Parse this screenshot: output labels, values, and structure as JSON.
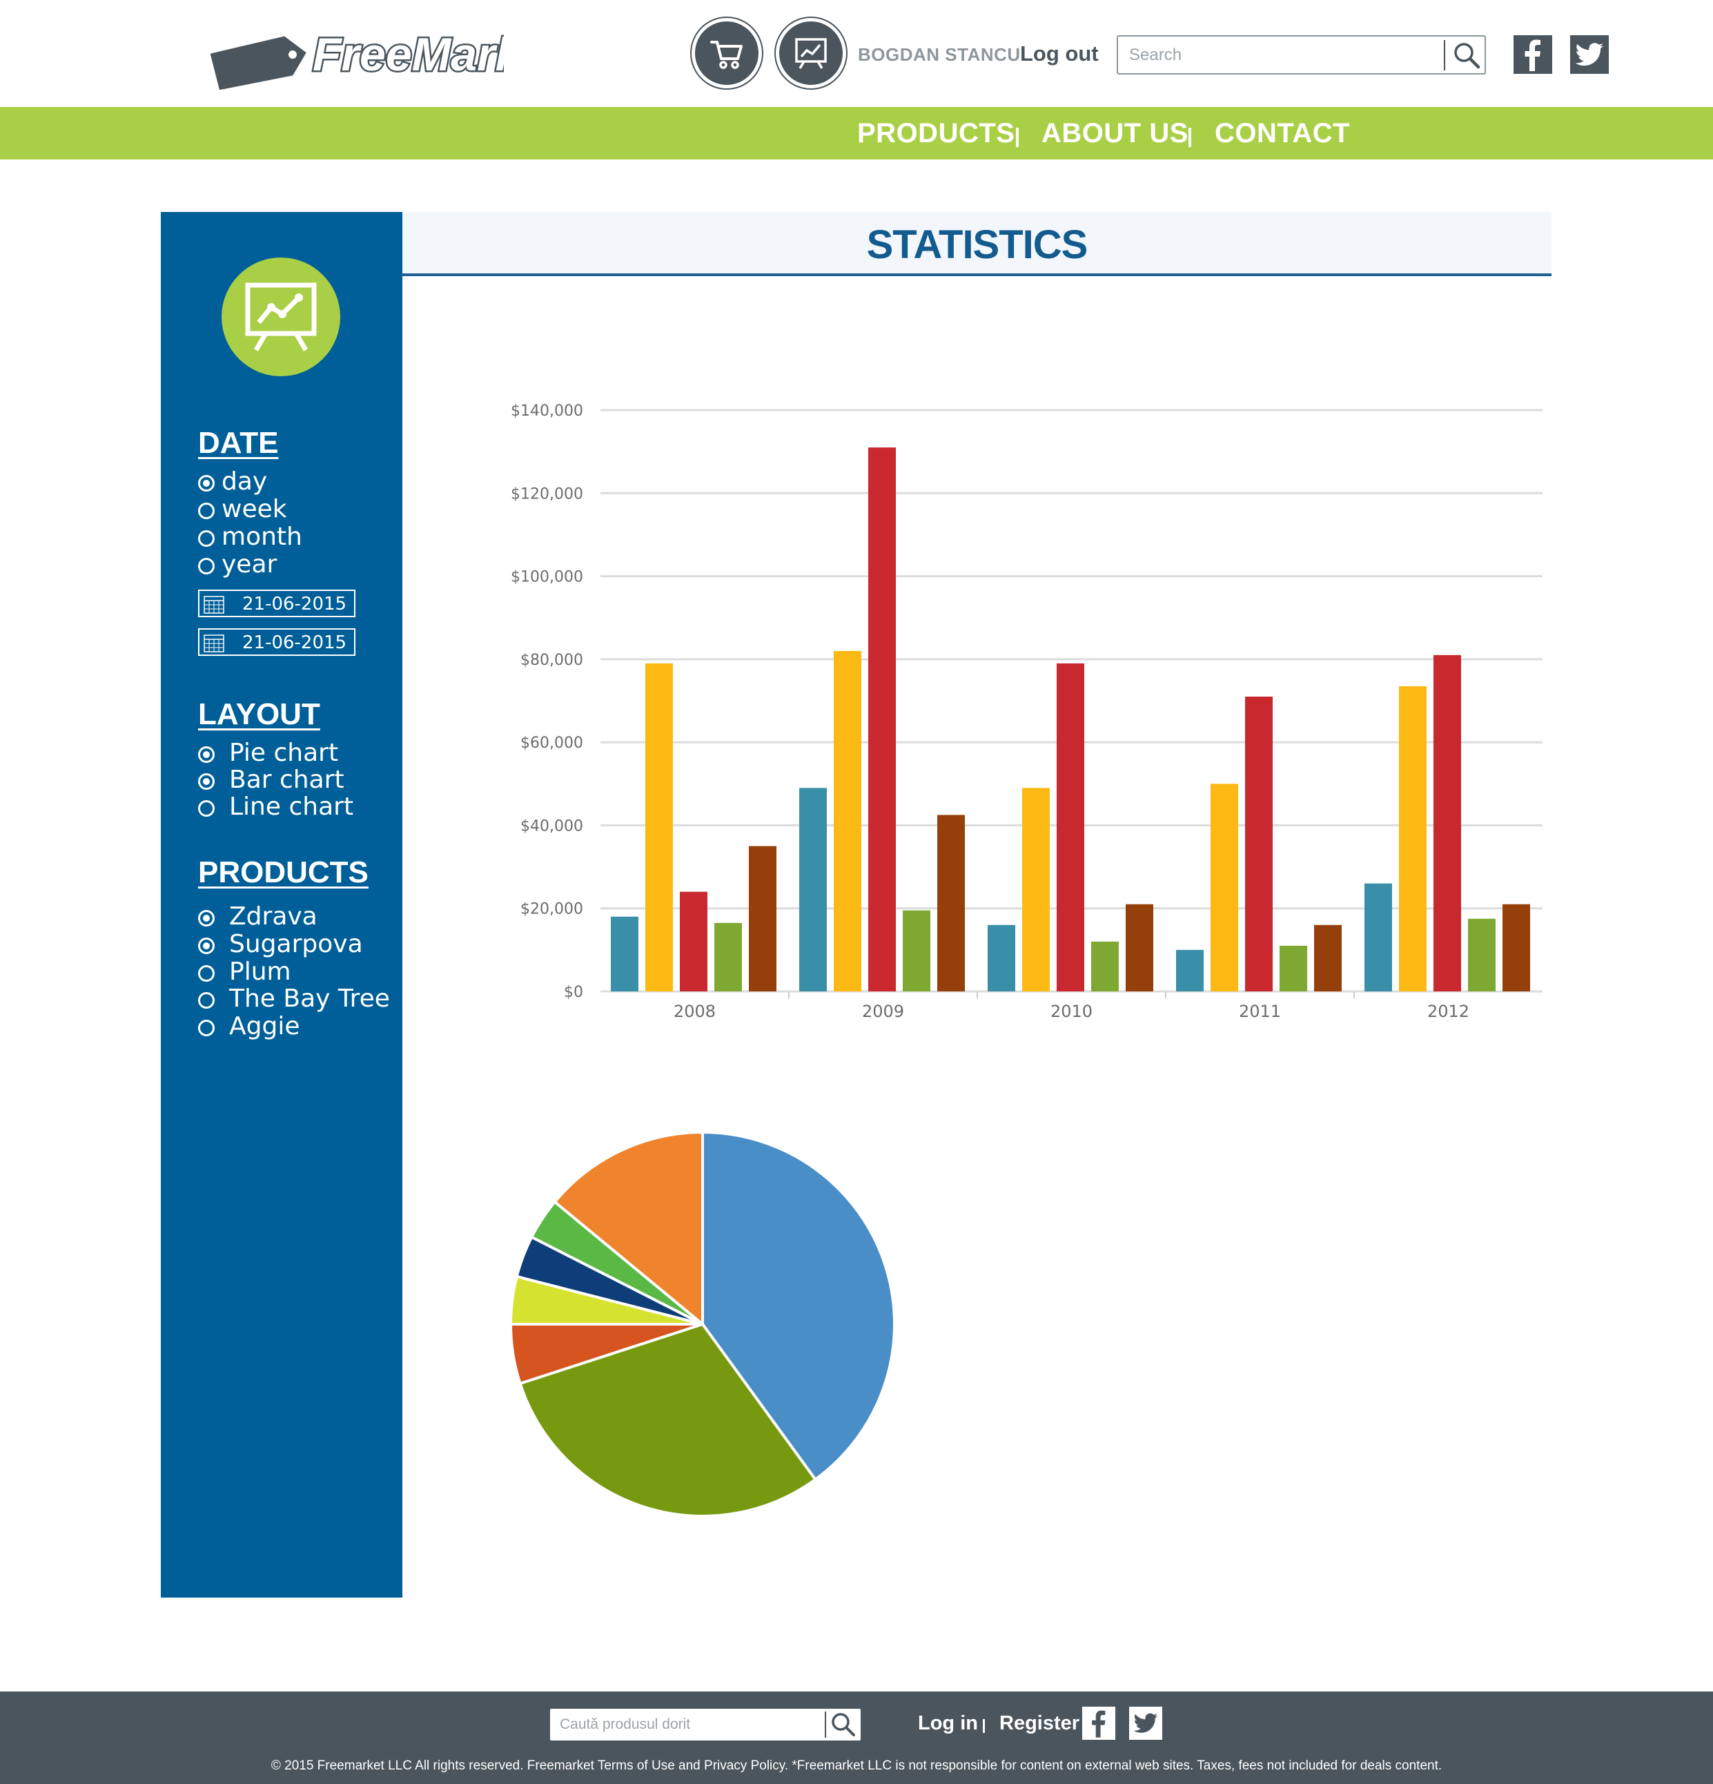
{
  "header": {
    "logo_text": "FreeMarket",
    "user_name": "BOGDAN STANCU",
    "logout_label": "Log out",
    "search_placeholder": "Search",
    "icons": [
      "shopping-cart-icon",
      "statistics-chart-icon",
      "search-icon",
      "facebook-icon",
      "twitter-icon"
    ]
  },
  "nav": {
    "items": [
      "PRODUCTS",
      "ABOUT US",
      "CONTACT"
    ]
  },
  "sidebar": {
    "date": {
      "heading": "DATE",
      "options": [
        {
          "label": "day",
          "checked": true
        },
        {
          "label": "week",
          "checked": false
        },
        {
          "label": "month",
          "checked": false
        },
        {
          "label": "year",
          "checked": false
        }
      ],
      "from": "21-06-2015",
      "to": "21-06-2015"
    },
    "layout": {
      "heading": "LAYOUT",
      "options": [
        {
          "label": "Pie chart",
          "checked": true
        },
        {
          "label": "Bar chart",
          "checked": true
        },
        {
          "label": "Line chart",
          "checked": false
        }
      ]
    },
    "products": {
      "heading": "PRODUCTS",
      "options": [
        {
          "label": "Zdrava",
          "checked": true
        },
        {
          "label": "Sugarpova",
          "checked": true
        },
        {
          "label": "Plum",
          "checked": false
        },
        {
          "label": "The Bay Tree",
          "checked": false
        },
        {
          "label": "Aggie",
          "checked": false
        }
      ]
    }
  },
  "main": {
    "title": "STATISTICS"
  },
  "chart_data": [
    {
      "type": "bar",
      "categories": [
        "2008",
        "2009",
        "2010",
        "2011",
        "2012"
      ],
      "series": [
        {
          "color": "#3a8fa8",
          "values": [
            18000,
            49000,
            16000,
            10000,
            26000
          ]
        },
        {
          "color": "#fdb913",
          "values": [
            79000,
            82000,
            49000,
            50000,
            73500
          ]
        },
        {
          "color": "#c8282e",
          "values": [
            24000,
            131000,
            79000,
            71000,
            81000
          ]
        },
        {
          "color": "#7ea832",
          "values": [
            16500,
            19500,
            12000,
            11000,
            17500
          ]
        },
        {
          "color": "#953f0a",
          "values": [
            35000,
            42500,
            21000,
            16000,
            21000
          ]
        }
      ],
      "y_ticks": [
        "$0",
        "$20,000",
        "$40,000",
        "$60,000",
        "$80,000",
        "$100,000",
        "$120,000",
        "$140,000"
      ],
      "ylim": [
        0,
        140000
      ],
      "grid": true
    },
    {
      "type": "pie",
      "slices": [
        {
          "value": 40,
          "color": "#4a8ec8"
        },
        {
          "value": 30,
          "color": "#77990f"
        },
        {
          "value": 5,
          "color": "#d5541f"
        },
        {
          "value": 4,
          "color": "#d6e230"
        },
        {
          "value": 3.5,
          "color": "#0e3e7a"
        },
        {
          "value": 3.5,
          "color": "#5ab844"
        },
        {
          "value": 14,
          "color": "#f0842d"
        }
      ]
    }
  ],
  "footer": {
    "search_placeholder": "Caută produsul dorit",
    "login_label": "Log in",
    "register_label": "Register",
    "copyright": "© 2015 Freemarket LLC All rights reserved. Freemarket Terms of Use and Privacy Policy. *Freemarket LLC is not responsible for content on external web sites. Taxes, fees not included for deals content."
  },
  "colors": {
    "accent_green": "#a9cf46",
    "sidebar_blue": "#005f98",
    "dark_gray": "#4a555d",
    "title_blue": "#135b8f"
  }
}
